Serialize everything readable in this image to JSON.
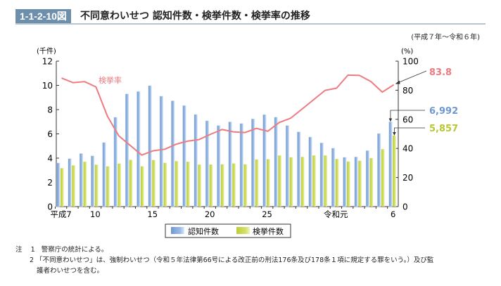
{
  "header": {
    "figure_no": "1-1-2-10図",
    "title": "不同意わいせつ 認知件数・検挙件数・検挙率の推移",
    "period": "(平成７年～令和６年)"
  },
  "chart_data": {
    "type": "bar+line",
    "title": "不同意わいせつ 認知件数・検挙件数・検挙率の推移",
    "x": [
      1995,
      1996,
      1997,
      1998,
      1999,
      2000,
      2001,
      2002,
      2003,
      2004,
      2005,
      2006,
      2007,
      2008,
      2009,
      2010,
      2011,
      2012,
      2013,
      2014,
      2015,
      2016,
      2017,
      2018,
      2019,
      2020,
      2021,
      2022,
      2023,
      2024
    ],
    "x_tick_labels": [
      {
        "year": 1995,
        "label": "平成7"
      },
      {
        "year": 1998,
        "label": "10"
      },
      {
        "year": 2003,
        "label": "15"
      },
      {
        "year": 2008,
        "label": "20"
      },
      {
        "year": 2013,
        "label": "25"
      },
      {
        "year": 2019,
        "label": "令和元"
      },
      {
        "year": 2024,
        "label": "6"
      }
    ],
    "left_axis": {
      "label": "(千件)",
      "ylim": [
        0,
        12
      ],
      "ticks": [
        0,
        2,
        4,
        6,
        8,
        10,
        12
      ]
    },
    "right_axis": {
      "label": "(%)",
      "ylim": [
        0,
        100
      ],
      "ticks": [
        0,
        20,
        40,
        60,
        80,
        100
      ]
    },
    "series": [
      {
        "name": "認知件数",
        "type": "bar",
        "axis": "left",
        "color": "#7ea6d8",
        "values": [
          3.6,
          3.96,
          4.38,
          4.19,
          5.29,
          7.37,
          9.3,
          9.5,
          9.98,
          9.11,
          8.73,
          8.34,
          7.6,
          7.08,
          6.69,
          6.99,
          6.86,
          7.24,
          7.59,
          7.38,
          6.69,
          6.17,
          5.74,
          5.26,
          4.82,
          4.07,
          4.1,
          4.62,
          6.03,
          6.992
        ]
      },
      {
        "name": "検挙件数",
        "type": "bar",
        "axis": "left",
        "color": "#c8d84a",
        "values": [
          3.17,
          3.4,
          3.7,
          3.46,
          3.32,
          3.55,
          3.86,
          3.32,
          3.84,
          3.61,
          3.75,
          3.7,
          3.47,
          3.47,
          3.49,
          3.56,
          3.49,
          3.89,
          3.91,
          4.22,
          4.07,
          4.1,
          4.22,
          4.22,
          3.93,
          3.72,
          3.78,
          4.0,
          4.74,
          5.857
        ]
      },
      {
        "name": "検挙率",
        "type": "line",
        "axis": "right",
        "color": "#ee7b80",
        "values": [
          88.4,
          85.2,
          85.9,
          82.3,
          62.2,
          48.6,
          42.0,
          35.4,
          38.4,
          39.4,
          42.9,
          45.0,
          46.1,
          49.7,
          53.0,
          51.4,
          50.9,
          53.8,
          51.8,
          57.8,
          60.8,
          67.1,
          73.5,
          79.9,
          81.4,
          90.4,
          90.2,
          86.0,
          78.7,
          83.8
        ]
      }
    ],
    "annotations": {
      "rate_label": "検挙率",
      "last_rate": "83.8",
      "last_recognized": "6,992",
      "last_cleared": "5,857"
    },
    "legend": {
      "position": "bottom-center",
      "items": [
        "認知件数",
        "検挙件数"
      ]
    }
  },
  "notes": {
    "prefix": "注",
    "items": [
      {
        "no": "1",
        "text": "警察庁の統計による。"
      },
      {
        "no": "2",
        "text": "「不同意わいせつ」は、強制わいせつ（令和５年法律第66号による改正前の刑法176条及び178条１項に規定する罪をいう。）及び監",
        "text2": "護者わいせつを含む。"
      }
    ]
  }
}
